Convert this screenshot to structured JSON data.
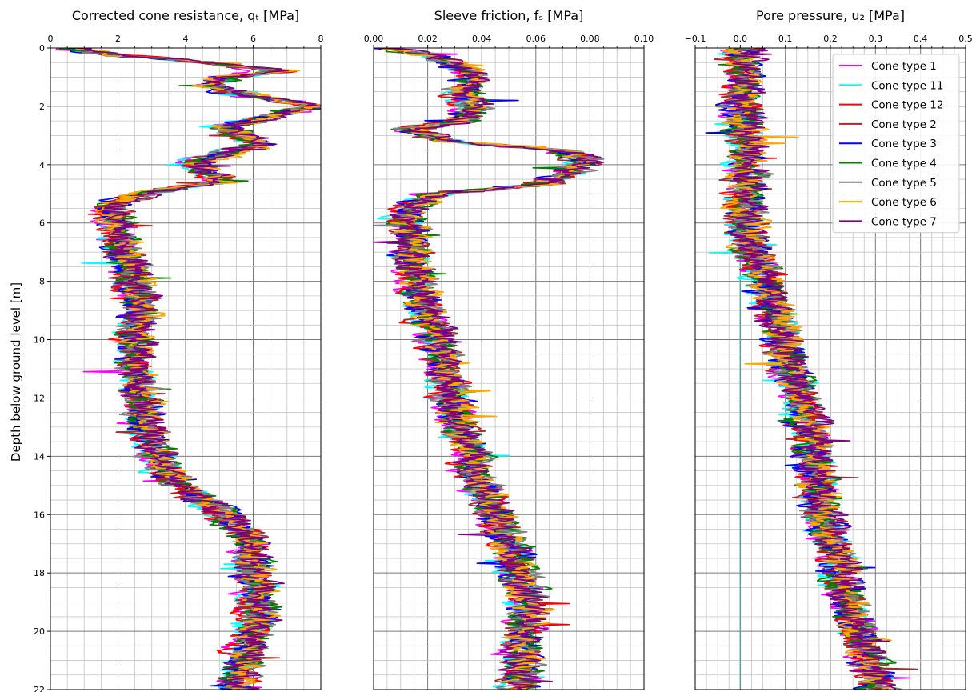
{
  "colors": {
    "Cone type 1": "#ff00ff",
    "Cone type 11": "#00ffff",
    "Cone type 12": "#ff0000",
    "Cone type 2": "#a52a2a",
    "Cone type 3": "#0000ff",
    "Cone type 4": "#008000",
    "Cone type 5": "#808080",
    "Cone type 6": "#ffa500",
    "Cone type 7": "#800080",
    "zero_line": "#5f9ea0"
  },
  "chart_data": [
    {
      "type": "line",
      "title": "Corrected cone resistance, qₜ [MPa]",
      "ylabel": "Depth below ground level [m]",
      "xlim": [
        0,
        8
      ],
      "ylim": [
        22,
        0
      ],
      "x_ticks": [
        "0",
        "2",
        "4",
        "6",
        "8"
      ],
      "y_ticks": [
        "0",
        "2",
        "4",
        "6",
        "8",
        "10",
        "12",
        "14",
        "16",
        "18",
        "20",
        "22"
      ],
      "grid": true,
      "x_axis_position": "top",
      "profile": {
        "depth": [
          0,
          0.2,
          0.5,
          0.8,
          1.0,
          1.3,
          1.6,
          2.0,
          2.3,
          2.7,
          3.0,
          3.3,
          3.6,
          4.0,
          4.3,
          4.6,
          4.9,
          5.2,
          5.5,
          6,
          7,
          8,
          9,
          10,
          11,
          12,
          13,
          14,
          15,
          16,
          17,
          18,
          19,
          20,
          21,
          22
        ],
        "value": [
          0.4,
          1.5,
          4.5,
          6.5,
          5.0,
          4.5,
          5.5,
          7.8,
          6.5,
          5.0,
          5.5,
          6.0,
          5.0,
          4.0,
          4.5,
          5.0,
          3.0,
          2.0,
          1.6,
          1.8,
          2.0,
          2.3,
          2.5,
          2.3,
          2.3,
          2.5,
          2.6,
          3.0,
          3.6,
          5.0,
          5.8,
          5.8,
          6.0,
          5.8,
          5.5,
          5.3
        ]
      },
      "series": [
        {
          "name": "Cone type 1"
        },
        {
          "name": "Cone type 11"
        },
        {
          "name": "Cone type 12"
        },
        {
          "name": "Cone type 2"
        },
        {
          "name": "Cone type 3"
        },
        {
          "name": "Cone type 4"
        },
        {
          "name": "Cone type 5"
        },
        {
          "name": "Cone type 6"
        },
        {
          "name": "Cone type 7"
        }
      ]
    },
    {
      "type": "line",
      "title": "Sleeve friction, fₛ [MPa]",
      "xlim": [
        0,
        0.1
      ],
      "ylim": [
        22,
        0
      ],
      "x_ticks": [
        "0.00",
        "0.02",
        "0.04",
        "0.06",
        "0.08",
        "0.10"
      ],
      "grid": true,
      "x_axis_position": "top",
      "profile": {
        "depth": [
          0,
          0.2,
          0.6,
          1.0,
          1.5,
          2.0,
          2.5,
          2.8,
          3.2,
          3.5,
          3.9,
          4.3,
          4.7,
          5.0,
          5.3,
          5.7,
          6.5,
          7.5,
          8.5,
          9.5,
          10.5,
          11.5,
          12.5,
          13.5,
          14.5,
          15.5,
          16.5,
          17.5,
          18.5,
          19.5,
          20.5,
          21.5,
          22
        ],
        "value": [
          0.005,
          0.02,
          0.035,
          0.04,
          0.035,
          0.04,
          0.035,
          0.015,
          0.03,
          0.075,
          0.08,
          0.075,
          0.065,
          0.025,
          0.018,
          0.015,
          0.016,
          0.018,
          0.02,
          0.024,
          0.028,
          0.03,
          0.033,
          0.037,
          0.04,
          0.045,
          0.05,
          0.055,
          0.058,
          0.06,
          0.058,
          0.057,
          0.057
        ]
      },
      "series": [
        {
          "name": "Cone type 1"
        },
        {
          "name": "Cone type 11"
        },
        {
          "name": "Cone type 12"
        },
        {
          "name": "Cone type 2"
        },
        {
          "name": "Cone type 3"
        },
        {
          "name": "Cone type 4"
        },
        {
          "name": "Cone type 5"
        },
        {
          "name": "Cone type 6"
        },
        {
          "name": "Cone type 7"
        }
      ]
    },
    {
      "type": "line",
      "title": "Pore pressure, u₂ [MPa]",
      "xlim": [
        -0.1,
        0.5
      ],
      "ylim": [
        22,
        0
      ],
      "x_ticks": [
        "−0.1",
        "0.0",
        "0.1",
        "0.2",
        "0.3",
        "0.4",
        "0.5"
      ],
      "grid": true,
      "x_axis_position": "top",
      "legend": "top-right",
      "zero_line_x": 0.0,
      "profile": {
        "depth": [
          0,
          2,
          4,
          5,
          6,
          7,
          8,
          9,
          10,
          11,
          12,
          13,
          14,
          15,
          16,
          17,
          18,
          19,
          20,
          21,
          22
        ],
        "value": [
          0.0,
          0.0,
          0.01,
          0.01,
          0.01,
          0.03,
          0.05,
          0.07,
          0.09,
          0.11,
          0.13,
          0.15,
          0.16,
          0.17,
          0.18,
          0.2,
          0.22,
          0.24,
          0.26,
          0.28,
          0.3
        ]
      },
      "series": [
        {
          "name": "Cone type 1"
        },
        {
          "name": "Cone type 11"
        },
        {
          "name": "Cone type 12"
        },
        {
          "name": "Cone type 2"
        },
        {
          "name": "Cone type 3"
        },
        {
          "name": "Cone type 4"
        },
        {
          "name": "Cone type 5"
        },
        {
          "name": "Cone type 6"
        },
        {
          "name": "Cone type 7"
        }
      ]
    }
  ]
}
